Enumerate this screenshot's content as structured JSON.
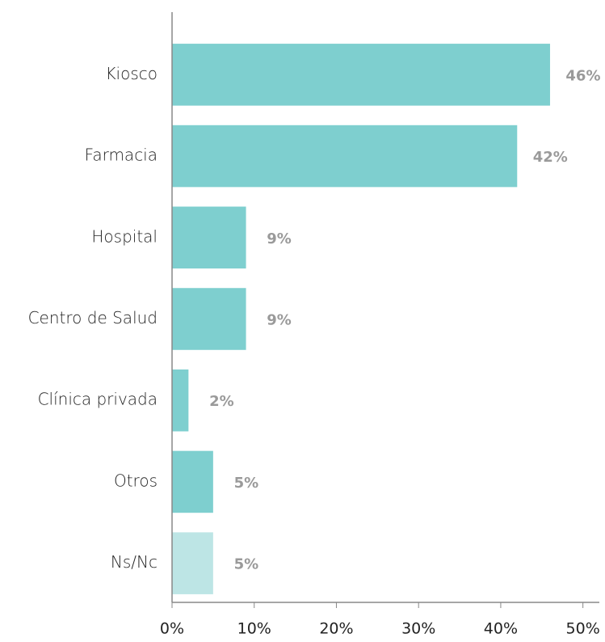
{
  "chart_data": {
    "type": "bar",
    "orientation": "horizontal",
    "categories": [
      "Kiosco",
      "Farmacia",
      "Hospital",
      "Centro de Salud",
      "Clínica privada",
      "Otros",
      "Ns/Nc"
    ],
    "values": [
      46,
      42,
      9,
      9,
      2,
      5,
      5
    ],
    "value_labels": [
      "46%",
      "42%",
      "9%",
      "9%",
      "2%",
      "5%",
      "5%"
    ],
    "colors": [
      "#7ecfcf",
      "#7ecfcf",
      "#7ecfcf",
      "#7ecfcf",
      "#7ecfcf",
      "#7ecfcf",
      "#bde5e5"
    ],
    "xlim": [
      0,
      52
    ],
    "xticks": [
      {
        "value": 0,
        "label": "0%"
      },
      {
        "value": 10,
        "label": "10%"
      },
      {
        "value": 20,
        "label": "20%"
      },
      {
        "value": 30,
        "label": "30%"
      },
      {
        "value": 40,
        "label": "40%"
      },
      {
        "value": 50,
        "label": "50%"
      }
    ],
    "grid": false
  }
}
